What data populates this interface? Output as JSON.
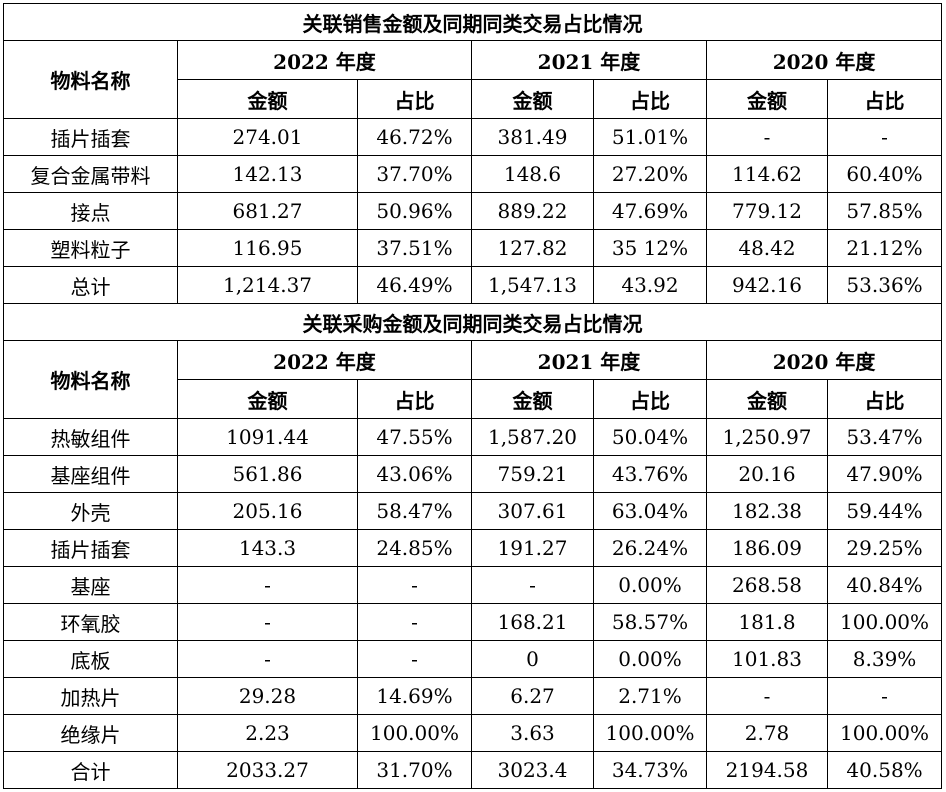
{
  "sales": {
    "title": "关联销售金额及同期同类交易占比情况",
    "material_header": "物料名称",
    "years": [
      "2022 年度",
      "2021 年度",
      "2020 年度"
    ],
    "sub_headers": [
      "金额",
      "占比",
      "金额",
      "占比",
      "金额",
      "占比"
    ],
    "rows": [
      [
        "插片插套",
        "274.01",
        "46.72%",
        "381.49",
        "51.01%",
        "-",
        "-"
      ],
      [
        "复合金属带料",
        "142.13",
        "37.70%",
        "148.6",
        "27.20%",
        "114.62",
        "60.40%"
      ],
      [
        "接点",
        "681.27",
        "50.96%",
        "889.22",
        "47.69%",
        "779.12",
        "57.85%"
      ],
      [
        "塑料粒子",
        "116.95",
        "37.51%",
        "127.82",
        "35 12%",
        "48.42",
        "21.12%"
      ],
      [
        "总计",
        "1,214.37",
        "46.49%",
        "1,547.13",
        "43.92",
        "942.16",
        "53.36%"
      ]
    ]
  },
  "purchase": {
    "title": "关联采购金额及同期同类交易占比情况",
    "material_header": "物料名称",
    "years": [
      "2022 年度",
      "2021 年度",
      "2020 年度"
    ],
    "sub_headers": [
      "金额",
      "占比",
      "金额",
      "占比",
      "金额",
      "占比"
    ],
    "rows": [
      [
        "热敏组件",
        "1091.44",
        "47.55%",
        "1,587.20",
        "50.04%",
        "1,250.97",
        "53.47%"
      ],
      [
        "基座组件",
        "561.86",
        "43.06%",
        "759.21",
        "43.76%",
        "20.16",
        "47.90%"
      ],
      [
        "外壳",
        "205.16",
        "58.47%",
        "307.61",
        "63.04%",
        "182.38",
        "59.44%"
      ],
      [
        "插片插套",
        "143.3",
        "24.85%",
        "191.27",
        "26.24%",
        "186.09",
        "29.25%"
      ],
      [
        "基座",
        "-",
        "-",
        "-",
        "0.00%",
        "268.58",
        "40.84%"
      ],
      [
        "环氧胶",
        "-",
        "-",
        "168.21",
        "58.57%",
        "181.8",
        "100.00%"
      ],
      [
        "底板",
        "-",
        "-",
        "0",
        "0.00%",
        "101.83",
        "8.39%"
      ],
      [
        "加热片",
        "29.28",
        "14.69%",
        "6.27",
        "2.71%",
        "-",
        "-"
      ],
      [
        "绝缘片",
        "2.23",
        "100.00%",
        "3.63",
        "100.00%",
        "2.78",
        "100.00%"
      ],
      [
        "合计",
        "2033.27",
        "31.70%",
        "3023.4",
        "34.73%",
        "2194.58",
        "40.58%"
      ]
    ]
  }
}
